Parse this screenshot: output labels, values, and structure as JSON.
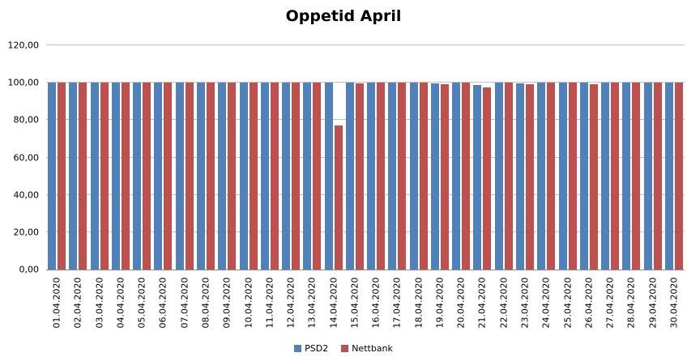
{
  "chart_data": {
    "type": "bar",
    "title": "Oppetid April",
    "categories": [
      "01.04.2020",
      "02.04.2020",
      "03.04.2020",
      "04.04.2020",
      "05.04.2020",
      "06.04.2020",
      "07.04.2020",
      "08.04.2020",
      "09.04.2020",
      "10.04.2020",
      "11.04.2020",
      "12.04.2020",
      "13.04.2020",
      "14.04.2020",
      "15.04.2020",
      "16.04.2020",
      "17.04.2020",
      "18.04.2020",
      "19.04.2020",
      "20.04.2020",
      "21.04.2020",
      "22.04.2020",
      "23.04.2020",
      "24.04.2020",
      "25.04.2020",
      "26.04.2020",
      "27.04.2020",
      "28.04.2020",
      "29.04.2020",
      "30.04.2020"
    ],
    "series": [
      {
        "name": "PSD2",
        "color": "#4F81BD",
        "values": [
          100,
          100,
          100,
          100,
          100,
          100,
          100,
          100,
          100,
          100,
          100,
          100,
          100,
          100,
          100,
          100,
          100,
          100,
          99.7,
          100,
          98.7,
          100,
          99.8,
          100,
          100,
          100,
          100,
          100,
          100,
          100
        ]
      },
      {
        "name": "Nettbank",
        "color": "#C0504D",
        "values": [
          100,
          100,
          100,
          100,
          100,
          100,
          100,
          100,
          100,
          100,
          100,
          100,
          100,
          77.1,
          99.5,
          100,
          100,
          100,
          99.4,
          100,
          97.7,
          100,
          99.3,
          100,
          100,
          99.2,
          100,
          100,
          100,
          100
        ]
      }
    ],
    "ylim": [
      0,
      120
    ],
    "ytick_interval": 20,
    "ytick_labels": [
      "0,00",
      "20,00",
      "40,00",
      "60,00",
      "80,00",
      "100,00",
      "120,00"
    ],
    "xlabel": "",
    "ylabel": "",
    "grid": true,
    "legend_position": "bottom",
    "colors": {
      "gridline": "#c3c3c3",
      "axis_line": "#8e8e8e",
      "background": "#ffffff",
      "text": "#000000"
    }
  }
}
